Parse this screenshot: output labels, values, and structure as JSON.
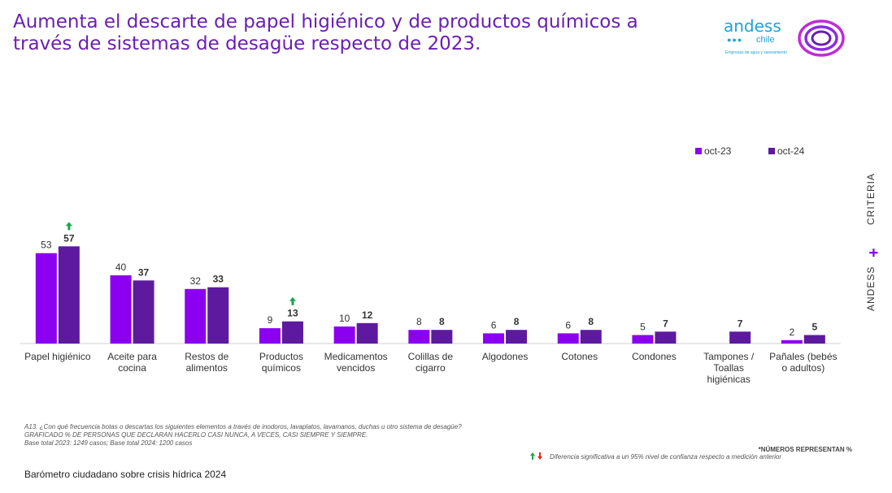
{
  "title": "Aumenta el descarte de papel higiénico y de productos químicos a través de sistemas de desagüe respecto de 2023.",
  "logo": {
    "word": "andess",
    "sub": "chile",
    "tagline": "Empresas de agua y saneamiento"
  },
  "side_brand": {
    "first": "ANDESS",
    "plus": "+",
    "second": "CRITERIA"
  },
  "colors": {
    "oct23": "#8b00f0",
    "oct24": "#5d1a9e",
    "accent": "#6a1fb0",
    "up": "#1aa64b",
    "down": "#e0261b"
  },
  "chart_data": {
    "type": "bar",
    "categories": [
      "Papel higiénico",
      "Aceite para cocina",
      "Restos de alimentos",
      "Productos químicos",
      "Medicamentos vencidos",
      "Colillas de cigarro",
      "Algodones",
      "Cotones",
      "Condones",
      "Tampones / Toallas higiénicas",
      "Pañales (bebés o adultos)"
    ],
    "category_lines": [
      [
        "Papel higiénico"
      ],
      [
        "Aceite para",
        "cocina"
      ],
      [
        "Restos de",
        "alimentos"
      ],
      [
        "Productos",
        "químicos"
      ],
      [
        "Medicamentos",
        "vencidos"
      ],
      [
        "Colillas de",
        "cigarro"
      ],
      [
        "Algodones"
      ],
      [
        "Cotones"
      ],
      [
        "Condones"
      ],
      [
        "Tampones /",
        "Toallas",
        "higiénicas"
      ],
      [
        "Pañales (bebés",
        "o adultos)"
      ]
    ],
    "series": [
      {
        "name": "oct-23",
        "values": [
          53,
          40,
          32,
          9,
          10,
          8,
          6,
          6,
          5,
          null,
          2
        ]
      },
      {
        "name": "oct-24",
        "values": [
          57,
          37,
          33,
          13,
          12,
          8,
          8,
          8,
          7,
          7,
          5
        ]
      }
    ],
    "significant_increase": [
      "Papel higiénico",
      "Productos químicos"
    ],
    "ylim": [
      0,
      70
    ],
    "grid": false,
    "legend_position": "top-right"
  },
  "notes": [
    "A13. ¿Con qué frecuencia botas o descartas los siguientes elementos a través de inodoros, lavaplatos, lavamanos, duchas u otro sistema de desagüe?",
    "GRAFICADO % DE PERSONAS QUE DECLARAN HACERLO CASI NUNCA, A VECES, CASI SIEMPRE Y SIEMPRE.",
    "Base total 2023: 1249 casos; Base total 2024: 1200 casos"
  ],
  "numbers_represent": "*NÚMEROS REPRESENTAN %",
  "significance_note": "Diferencia significativa a un 95% nivel de confianza respecto a medición anterior",
  "footer": "Barómetro ciudadano sobre crisis hídrica 2024"
}
